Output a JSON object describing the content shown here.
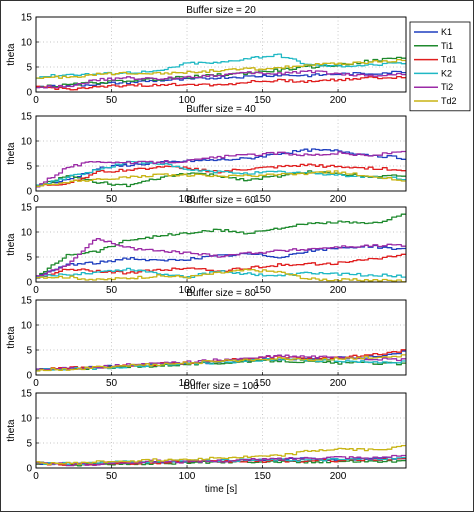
{
  "chart_data": {
    "type": "line",
    "shared": {
      "xlabel": "time [s]",
      "ylabel": "theta",
      "xlim": [
        0,
        245
      ],
      "ylim": [
        0,
        15
      ],
      "xticks": [
        0,
        50,
        100,
        150,
        200
      ],
      "yticks": [
        0,
        5,
        10,
        15
      ],
      "grid": true,
      "legend_placement": "right of top panel"
    },
    "legend": [
      {
        "name": "K1",
        "color": "#1f3fbf"
      },
      {
        "name": "Ti1",
        "color": "#1f8a2e"
      },
      {
        "name": "Td1",
        "color": "#e01e1e"
      },
      {
        "name": "K2",
        "color": "#1fb8c4"
      },
      {
        "name": "Ti2",
        "color": "#9b2aa6"
      },
      {
        "name": "Td2",
        "color": "#c8b414"
      }
    ],
    "x": [
      0,
      20,
      40,
      60,
      80,
      100,
      120,
      140,
      160,
      180,
      200,
      220,
      245
    ],
    "panels": [
      {
        "title": "Buffer size = 20",
        "series": [
          {
            "name": "K1",
            "values": [
              1,
              1.2,
              1.6,
              1.9,
              2.3,
              2.5,
              2.9,
              3.1,
              3.4,
              3.3,
              3.6,
              3.7,
              4.1
            ]
          },
          {
            "name": "Ti1",
            "values": [
              1,
              1.4,
              1.9,
              2.3,
              2.6,
              3.0,
              3.4,
              3.8,
              4.4,
              5.0,
              5.4,
              6.2,
              7.0
            ]
          },
          {
            "name": "Td1",
            "values": [
              1,
              0.6,
              0.9,
              1.4,
              1.3,
              1.6,
              1.4,
              2.0,
              2.3,
              2.1,
              2.5,
              2.8,
              3.0
            ]
          },
          {
            "name": "K2",
            "values": [
              3,
              3.5,
              3.6,
              3.9,
              4.1,
              5.8,
              5.8,
              6.8,
              7.4,
              5.4,
              5.2,
              5.4,
              5.8
            ]
          },
          {
            "name": "Ti2",
            "values": [
              1,
              1.2,
              2.4,
              2.8,
              2.6,
              3.0,
              3.4,
              3.8,
              3.7,
              4.2,
              3.6,
              3.3,
              3.6
            ]
          },
          {
            "name": "Td2",
            "values": [
              2.8,
              3.0,
              3.5,
              3.8,
              3.8,
              3.9,
              4.3,
              4.6,
              4.8,
              5.4,
              5.6,
              6.0,
              6.4
            ]
          }
        ]
      },
      {
        "title": "Buffer size = 40",
        "series": [
          {
            "name": "K1",
            "values": [
              1,
              2.2,
              4.5,
              5.2,
              5.6,
              6.0,
              6.2,
              6.5,
              7.5,
              8.2,
              8.0,
              7.2,
              6.5
            ]
          },
          {
            "name": "Ti1",
            "values": [
              1,
              3.0,
              1.8,
              1.0,
              2.5,
              3.6,
              3.0,
              2.2,
              3.0,
              3.8,
              3.4,
              3.0,
              3.2
            ]
          },
          {
            "name": "Td1",
            "values": [
              1,
              1.5,
              3.8,
              4.2,
              4.8,
              4.6,
              3.8,
              4.4,
              4.8,
              5.2,
              4.8,
              4.6,
              4.2
            ]
          },
          {
            "name": "K2",
            "values": [
              1,
              2.8,
              4.2,
              5.8,
              5.6,
              4.2,
              3.8,
              3.6,
              3.8,
              3.6,
              3.2,
              2.8,
              2.4
            ]
          },
          {
            "name": "Ti2",
            "values": [
              1,
              4.8,
              6.0,
              5.6,
              5.8,
              6.0,
              6.8,
              7.2,
              7.6,
              7.2,
              7.6,
              7.0,
              8.2
            ]
          },
          {
            "name": "Td2",
            "values": [
              1,
              1.8,
              2.2,
              2.8,
              3.2,
              3.2,
              3.0,
              3.0,
              3.2,
              3.6,
              3.8,
              3.0,
              2.0
            ]
          }
        ]
      },
      {
        "title": "Buffer size = 60",
        "series": [
          {
            "name": "K1",
            "values": [
              1,
              3.5,
              3.8,
              4.8,
              4.2,
              4.6,
              5.2,
              5.6,
              5.0,
              6.2,
              6.8,
              7.2,
              6.4
            ]
          },
          {
            "name": "Ti1",
            "values": [
              1,
              5.5,
              6.2,
              8.4,
              9.2,
              9.8,
              10.4,
              9.8,
              10.8,
              11.6,
              12.0,
              11.6,
              13.6
            ]
          },
          {
            "name": "Td1",
            "values": [
              1,
              2.5,
              2.2,
              1.8,
              2.4,
              2.8,
              2.2,
              2.8,
              3.4,
              3.6,
              3.8,
              4.6,
              5.4
            ]
          },
          {
            "name": "K2",
            "values": [
              1,
              1.5,
              2.0,
              2.6,
              1.8,
              1.0,
              2.2,
              1.6,
              1.2,
              1.8,
              1.6,
              1.4,
              1.2
            ]
          },
          {
            "name": "Ti2",
            "values": [
              1,
              3.5,
              8.8,
              6.8,
              6.2,
              5.8,
              5.2,
              5.8,
              6.2,
              6.6,
              7.0,
              7.2,
              7.4
            ]
          },
          {
            "name": "Td2",
            "values": [
              1,
              1.0,
              0.4,
              0.8,
              1.2,
              1.0,
              1.8,
              2.4,
              2.0,
              0.6,
              0.4,
              0.4,
              0.2
            ]
          }
        ]
      },
      {
        "title": "Buffer size = 80",
        "series": [
          {
            "name": "K1",
            "values": [
              1,
              1.3,
              1.6,
              1.8,
              2.1,
              2.3,
              2.6,
              2.9,
              3.2,
              3.2,
              3.4,
              3.6,
              4.8
            ]
          },
          {
            "name": "Ti1",
            "values": [
              1,
              1.2,
              1.4,
              1.6,
              1.9,
              2.2,
              2.4,
              2.7,
              2.9,
              2.6,
              2.4,
              2.4,
              2.2
            ]
          },
          {
            "name": "Td1",
            "values": [
              1,
              1.4,
              1.6,
              1.8,
              2.2,
              2.4,
              2.8,
              3.4,
              3.6,
              3.2,
              3.6,
              4.0,
              5.0
            ]
          },
          {
            "name": "K2",
            "values": [
              1,
              1.2,
              1.4,
              1.7,
              2.0,
              2.3,
              2.5,
              2.8,
              3.2,
              3.0,
              2.8,
              2.6,
              2.6
            ]
          },
          {
            "name": "Ti2",
            "values": [
              1,
              1.3,
              1.6,
              2.0,
              2.3,
              2.6,
              3.0,
              3.3,
              3.8,
              3.6,
              3.6,
              3.2,
              3.0
            ]
          },
          {
            "name": "Td2",
            "values": [
              1,
              1.2,
              1.5,
              1.9,
              2.1,
              2.4,
              2.8,
              3.0,
              3.4,
              3.0,
              3.2,
              3.6,
              3.8
            ]
          }
        ]
      },
      {
        "title": "Buffer size = 100",
        "series": [
          {
            "name": "K1",
            "values": [
              1,
              0.8,
              1.0,
              1.1,
              1.2,
              1.3,
              1.5,
              1.6,
              1.7,
              1.8,
              1.6,
              1.8,
              1.8
            ]
          },
          {
            "name": "Ti1",
            "values": [
              1,
              0.6,
              0.7,
              0.8,
              1.0,
              1.0,
              1.2,
              1.3,
              1.3,
              1.2,
              1.4,
              1.4,
              1.4
            ]
          },
          {
            "name": "Td1",
            "values": [
              1,
              0.7,
              0.9,
              1.0,
              1.1,
              1.2,
              1.3,
              1.4,
              1.4,
              1.4,
              1.5,
              1.7,
              1.8
            ]
          },
          {
            "name": "K2",
            "values": [
              1,
              0.9,
              1.0,
              1.2,
              1.3,
              1.4,
              1.5,
              1.6,
              1.6,
              1.6,
              1.7,
              1.8,
              2.0
            ]
          },
          {
            "name": "Ti2",
            "values": [
              1,
              0.7,
              0.8,
              1.2,
              1.4,
              1.2,
              1.4,
              1.6,
              1.8,
              2.0,
              2.2,
              2.0,
              2.4
            ]
          },
          {
            "name": "Td2",
            "values": [
              1,
              0.9,
              1.2,
              1.4,
              1.6,
              1.8,
              2.0,
              2.2,
              2.4,
              3.4,
              3.8,
              3.6,
              4.4
            ]
          }
        ]
      }
    ]
  }
}
